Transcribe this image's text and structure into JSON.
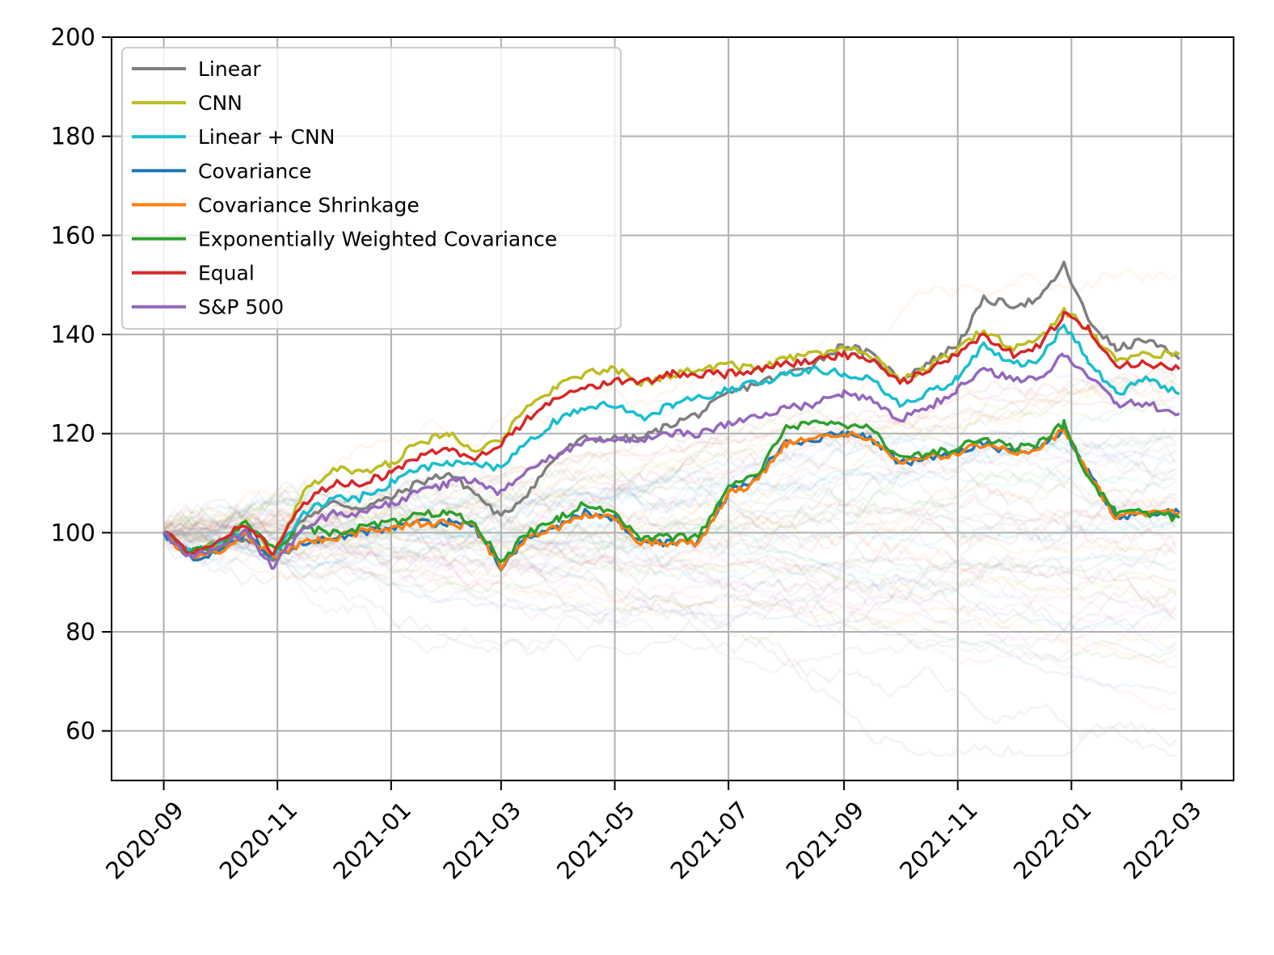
{
  "chart_data": {
    "type": "line",
    "title": "",
    "xlabel": "",
    "ylabel": "",
    "ylim": [
      50,
      200
    ],
    "xlim": [
      "2020-08-04",
      "2022-03-29"
    ],
    "grid": true,
    "legend_position": "top-left",
    "y_ticks": [
      60,
      80,
      100,
      120,
      140,
      160,
      180,
      200
    ],
    "x_ticks": [
      "2020-09",
      "2020-11",
      "2021-01",
      "2021-03",
      "2021-05",
      "2021-07",
      "2021-09",
      "2021-11",
      "2022-01",
      "2022-03"
    ],
    "background_note": "many faint translucent individual-asset lines behind the main series",
    "series": [
      {
        "name": "Linear",
        "color": "#7f7f7f",
        "x": [
          "2020-09-01",
          "2020-09-15",
          "2020-10-01",
          "2020-10-15",
          "2020-10-30",
          "2020-11-15",
          "2020-12-01",
          "2020-12-15",
          "2021-01-01",
          "2021-01-15",
          "2021-02-01",
          "2021-02-15",
          "2021-03-01",
          "2021-03-15",
          "2021-04-01",
          "2021-04-15",
          "2021-05-01",
          "2021-05-15",
          "2021-06-01",
          "2021-06-15",
          "2021-07-01",
          "2021-07-15",
          "2021-08-01",
          "2021-08-15",
          "2021-09-01",
          "2021-09-15",
          "2021-10-01",
          "2021-10-15",
          "2021-11-01",
          "2021-11-15",
          "2021-12-01",
          "2021-12-15",
          "2021-12-28",
          "2022-01-10",
          "2022-01-25",
          "2022-02-10",
          "2022-02-28"
        ],
        "values": [
          100,
          96,
          98,
          99,
          94,
          103,
          106,
          105,
          107,
          110,
          112,
          108,
          103,
          108,
          116,
          119,
          119,
          119,
          122,
          124,
          128,
          130,
          132,
          134,
          138,
          136,
          131,
          134,
          138,
          147,
          146,
          147,
          154,
          143,
          137,
          139,
          135
        ]
      },
      {
        "name": "CNN",
        "color": "#bcbd22",
        "x": [
          "2020-09-01",
          "2020-09-15",
          "2020-10-01",
          "2020-10-15",
          "2020-10-30",
          "2020-11-15",
          "2020-12-01",
          "2020-12-15",
          "2021-01-01",
          "2021-01-15",
          "2021-02-01",
          "2021-02-15",
          "2021-03-01",
          "2021-03-15",
          "2021-04-01",
          "2021-04-15",
          "2021-05-01",
          "2021-05-15",
          "2021-06-01",
          "2021-06-15",
          "2021-07-01",
          "2021-07-15",
          "2021-08-01",
          "2021-08-15",
          "2021-09-01",
          "2021-09-15",
          "2021-10-01",
          "2021-10-15",
          "2021-11-01",
          "2021-11-15",
          "2021-12-01",
          "2021-12-15",
          "2021-12-28",
          "2022-01-10",
          "2022-01-25",
          "2022-02-10",
          "2022-02-28"
        ],
        "values": [
          100,
          96,
          98,
          102,
          95,
          108,
          113,
          112,
          114,
          118,
          120,
          117,
          119,
          125,
          130,
          132,
          133,
          130,
          132,
          133,
          134,
          133,
          135,
          136,
          137,
          136,
          131,
          133,
          137,
          141,
          137,
          139,
          145,
          141,
          135,
          136,
          136
        ]
      },
      {
        "name": "Linear + CNN",
        "color": "#17becf",
        "x": [
          "2020-09-01",
          "2020-09-15",
          "2020-10-01",
          "2020-10-15",
          "2020-10-30",
          "2020-11-15",
          "2020-12-01",
          "2020-12-15",
          "2021-01-01",
          "2021-01-15",
          "2021-02-01",
          "2021-02-15",
          "2021-03-01",
          "2021-03-15",
          "2021-04-01",
          "2021-04-15",
          "2021-05-01",
          "2021-05-15",
          "2021-06-01",
          "2021-06-15",
          "2021-07-01",
          "2021-07-15",
          "2021-08-01",
          "2021-08-15",
          "2021-09-01",
          "2021-09-15",
          "2021-10-01",
          "2021-10-15",
          "2021-11-01",
          "2021-11-15",
          "2021-12-01",
          "2021-12-15",
          "2021-12-28",
          "2022-01-10",
          "2022-01-25",
          "2022-02-10",
          "2022-02-28"
        ],
        "values": [
          100,
          96,
          98,
          100,
          95,
          104,
          107,
          107,
          110,
          113,
          114,
          114,
          113,
          118,
          123,
          125,
          126,
          123,
          126,
          127,
          129,
          130,
          132,
          133,
          132,
          131,
          126,
          128,
          131,
          138,
          134,
          135,
          142,
          135,
          128,
          131,
          128
        ]
      },
      {
        "name": "Covariance",
        "color": "#1f77b4",
        "x": [
          "2020-09-01",
          "2020-09-15",
          "2020-10-01",
          "2020-10-15",
          "2020-10-30",
          "2020-11-15",
          "2020-12-01",
          "2020-12-15",
          "2021-01-01",
          "2021-01-15",
          "2021-02-01",
          "2021-02-15",
          "2021-03-01",
          "2021-03-15",
          "2021-04-01",
          "2021-04-15",
          "2021-05-01",
          "2021-05-15",
          "2021-06-01",
          "2021-06-15",
          "2021-07-01",
          "2021-07-15",
          "2021-08-01",
          "2021-08-15",
          "2021-09-01",
          "2021-09-15",
          "2021-10-01",
          "2021-10-15",
          "2021-11-01",
          "2021-11-15",
          "2021-12-01",
          "2021-12-15",
          "2021-12-28",
          "2022-01-10",
          "2022-01-25",
          "2022-02-10",
          "2022-02-28"
        ],
        "values": [
          100,
          95,
          96,
          100,
          95,
          98,
          99,
          100,
          101,
          102,
          102,
          101,
          93,
          99,
          101,
          104,
          103,
          98,
          98,
          98,
          108,
          111,
          118,
          119,
          120,
          119,
          114,
          115,
          116,
          118,
          116,
          117,
          121,
          112,
          103,
          104,
          104
        ]
      },
      {
        "name": "Covariance Shrinkage",
        "color": "#ff7f0e",
        "x": [
          "2020-09-01",
          "2020-09-15",
          "2020-10-01",
          "2020-10-15",
          "2020-10-30",
          "2020-11-15",
          "2020-12-01",
          "2020-12-15",
          "2021-01-01",
          "2021-01-15",
          "2021-02-01",
          "2021-02-15",
          "2021-03-01",
          "2021-03-15",
          "2021-04-01",
          "2021-04-15",
          "2021-05-01",
          "2021-05-15",
          "2021-06-01",
          "2021-06-15",
          "2021-07-01",
          "2021-07-15",
          "2021-08-01",
          "2021-08-15",
          "2021-09-01",
          "2021-09-15",
          "2021-10-01",
          "2021-10-15",
          "2021-11-01",
          "2021-11-15",
          "2021-12-01",
          "2021-12-15",
          "2021-12-28",
          "2022-01-10",
          "2022-01-25",
          "2022-02-10",
          "2022-02-28"
        ],
        "values": [
          100,
          95,
          96,
          100,
          95,
          98,
          99,
          100,
          101,
          102,
          102,
          101,
          93,
          99,
          101,
          104,
          103,
          98,
          98,
          98,
          108,
          110,
          118,
          119,
          120,
          119,
          114,
          115,
          116,
          118,
          116,
          117,
          121,
          112,
          103,
          104,
          104
        ]
      },
      {
        "name": "Exponentially Weighted Covariance",
        "color": "#2ca02c",
        "x": [
          "2020-09-01",
          "2020-09-15",
          "2020-10-01",
          "2020-10-15",
          "2020-10-30",
          "2020-11-15",
          "2020-12-01",
          "2020-12-15",
          "2021-01-01",
          "2021-01-15",
          "2021-02-01",
          "2021-02-15",
          "2021-03-01",
          "2021-03-15",
          "2021-04-01",
          "2021-04-15",
          "2021-05-01",
          "2021-05-15",
          "2021-06-01",
          "2021-06-15",
          "2021-07-01",
          "2021-07-15",
          "2021-08-01",
          "2021-08-15",
          "2021-09-01",
          "2021-09-15",
          "2021-10-01",
          "2021-10-15",
          "2021-11-01",
          "2021-11-15",
          "2021-12-01",
          "2021-12-15",
          "2021-12-28",
          "2022-01-10",
          "2022-01-25",
          "2022-02-10",
          "2022-02-28"
        ],
        "values": [
          100,
          96,
          97,
          102,
          97,
          101,
          100,
          101,
          102,
          104,
          104,
          102,
          94,
          100,
          103,
          106,
          104,
          99,
          99,
          99,
          110,
          111,
          121,
          122,
          122,
          121,
          115,
          116,
          117,
          119,
          117,
          118,
          122,
          111,
          104,
          104,
          103
        ]
      },
      {
        "name": "Equal",
        "color": "#d62728",
        "x": [
          "2020-09-01",
          "2020-09-15",
          "2020-10-01",
          "2020-10-15",
          "2020-10-30",
          "2020-11-15",
          "2020-12-01",
          "2020-12-15",
          "2021-01-01",
          "2021-01-15",
          "2021-02-01",
          "2021-02-15",
          "2021-03-01",
          "2021-03-15",
          "2021-04-01",
          "2021-04-15",
          "2021-05-01",
          "2021-05-15",
          "2021-06-01",
          "2021-06-15",
          "2021-07-01",
          "2021-07-15",
          "2021-08-01",
          "2021-08-15",
          "2021-09-01",
          "2021-09-15",
          "2021-10-01",
          "2021-10-15",
          "2021-11-01",
          "2021-11-15",
          "2021-12-01",
          "2021-12-15",
          "2021-12-28",
          "2022-01-10",
          "2022-01-25",
          "2022-02-10",
          "2022-02-28"
        ],
        "values": [
          100,
          96,
          98,
          102,
          96,
          106,
          110,
          110,
          112,
          115,
          117,
          115,
          118,
          123,
          127,
          129,
          131,
          130,
          132,
          132,
          132,
          133,
          134,
          135,
          136,
          135,
          130,
          133,
          136,
          140,
          136,
          138,
          144,
          141,
          134,
          134,
          133
        ]
      },
      {
        "name": "S&P 500",
        "color": "#9467bd",
        "x": [
          "2020-09-01",
          "2020-09-15",
          "2020-10-01",
          "2020-10-15",
          "2020-10-30",
          "2020-11-15",
          "2020-12-01",
          "2020-12-15",
          "2021-01-01",
          "2021-01-15",
          "2021-02-01",
          "2021-02-15",
          "2021-03-01",
          "2021-03-15",
          "2021-04-01",
          "2021-04-15",
          "2021-05-01",
          "2021-05-15",
          "2021-06-01",
          "2021-06-15",
          "2021-07-01",
          "2021-07-15",
          "2021-08-01",
          "2021-08-15",
          "2021-09-01",
          "2021-09-15",
          "2021-10-01",
          "2021-10-15",
          "2021-11-01",
          "2021-11-15",
          "2021-12-01",
          "2021-12-15",
          "2021-12-28",
          "2022-01-10",
          "2022-01-25",
          "2022-02-10",
          "2022-02-28"
        ],
        "values": [
          100,
          95,
          97,
          100,
          93,
          101,
          104,
          104,
          106,
          108,
          110,
          111,
          108,
          112,
          116,
          118,
          119,
          119,
          120,
          120,
          122,
          123,
          125,
          126,
          128,
          127,
          123,
          125,
          129,
          133,
          131,
          131,
          136,
          132,
          126,
          126,
          124
        ]
      }
    ]
  }
}
